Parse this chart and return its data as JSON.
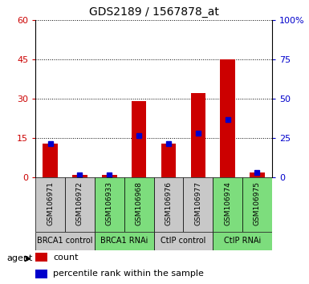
{
  "title": "GDS2189 / 1567878_at",
  "samples": [
    "GSM106971",
    "GSM106972",
    "GSM106933",
    "GSM106968",
    "GSM106976",
    "GSM106977",
    "GSM106974",
    "GSM106975"
  ],
  "count_values": [
    13,
    1,
    1,
    29,
    13,
    32,
    45,
    2
  ],
  "percentile_values": [
    13,
    1,
    1,
    16,
    13,
    17,
    22,
    2
  ],
  "group_boundaries": [
    [
      0,
      1,
      "BRCA1 control",
      "#c8c8c8"
    ],
    [
      2,
      3,
      "BRCA1 RNAi",
      "#7ddd7d"
    ],
    [
      4,
      5,
      "CtIP control",
      "#c8c8c8"
    ],
    [
      6,
      7,
      "CtIP RNAi",
      "#7ddd7d"
    ]
  ],
  "ylim": [
    0,
    60
  ],
  "yticks_left": [
    0,
    15,
    30,
    45,
    60
  ],
  "yticks_right": [
    0,
    25,
    50,
    75,
    100
  ],
  "right_tick_labels": [
    "0",
    "25",
    "50",
    "75",
    "100%"
  ],
  "bar_color": "#cc0000",
  "percentile_color": "#0000cc",
  "left_ytick_color": "#cc0000",
  "right_ytick_color": "#0000cc",
  "bar_width": 0.5,
  "title_fontsize": 10,
  "tick_fontsize": 8,
  "sample_fontsize": 6.5,
  "group_fontsize": 7
}
